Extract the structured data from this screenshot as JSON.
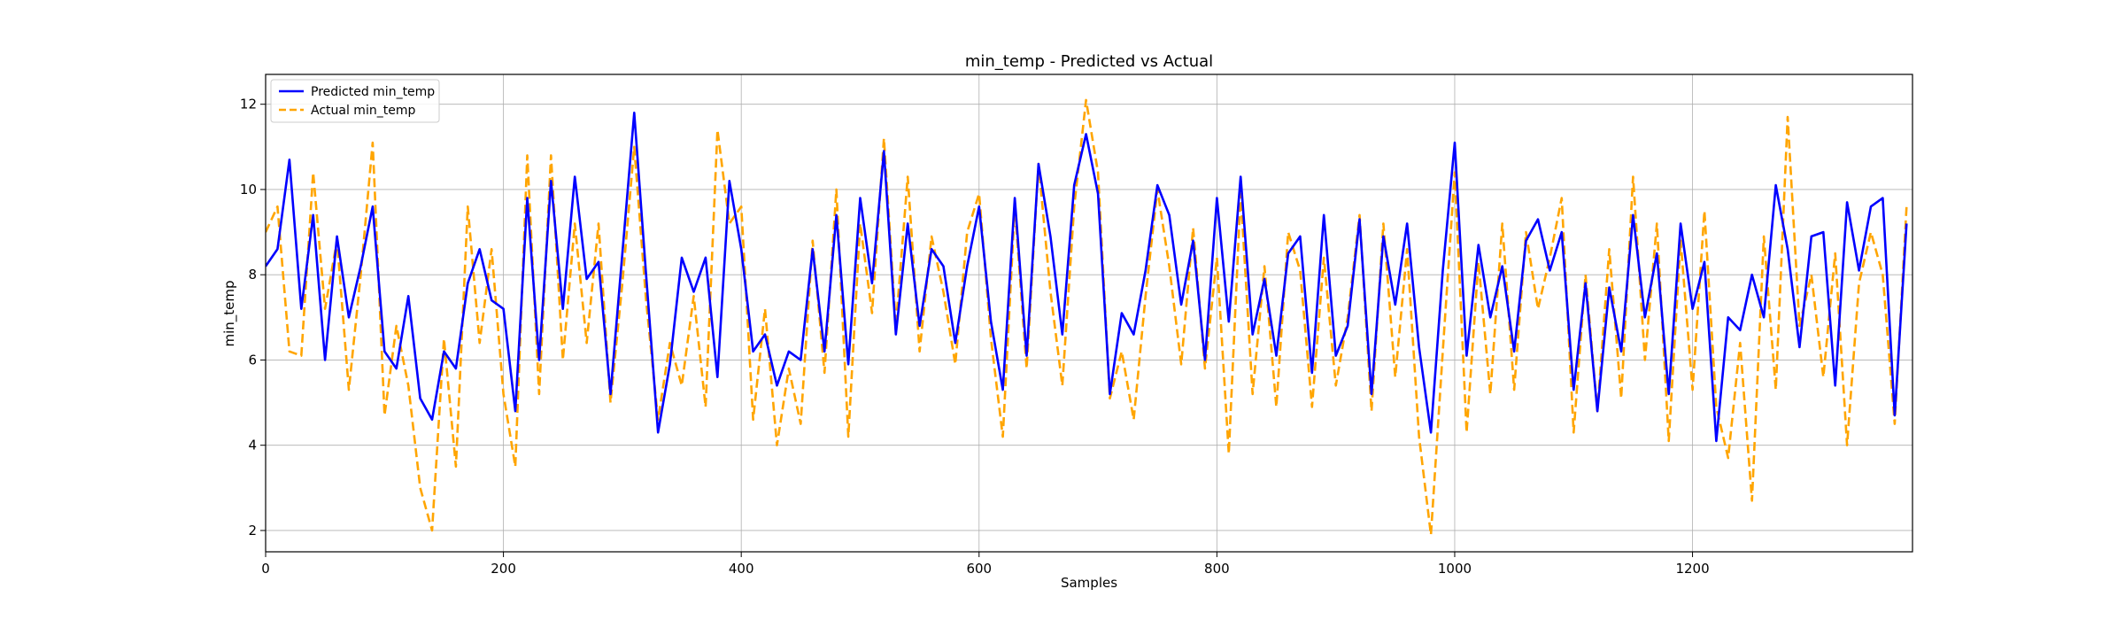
{
  "chart_data": {
    "type": "line",
    "title": "min_temp - Predicted vs Actual",
    "xlabel": "Samples",
    "ylabel": "min_temp",
    "xlim": [
      0,
      1385
    ],
    "ylim": [
      1.5,
      12.7
    ],
    "xticks": [
      0,
      200,
      400,
      600,
      800,
      1000,
      1200
    ],
    "yticks": [
      2,
      4,
      6,
      8,
      10,
      12
    ],
    "grid": true,
    "legend_position": "top-left",
    "series": [
      {
        "name": "Predicted min_temp",
        "color": "#0000ff",
        "style": "solid",
        "x": [
          0,
          10,
          20,
          30,
          40,
          50,
          60,
          70,
          80,
          90,
          100,
          110,
          120,
          130,
          140,
          150,
          160,
          170,
          180,
          190,
          200,
          210,
          220,
          230,
          240,
          250,
          260,
          270,
          280,
          290,
          300,
          310,
          320,
          330,
          340,
          350,
          360,
          370,
          380,
          390,
          400,
          410,
          420,
          430,
          440,
          450,
          460,
          470,
          480,
          490,
          500,
          510,
          520,
          530,
          540,
          550,
          560,
          570,
          580,
          590,
          600,
          610,
          620,
          630,
          640,
          650,
          660,
          670,
          680,
          690,
          700,
          710,
          720,
          730,
          740,
          750,
          760,
          770,
          780,
          790,
          800,
          810,
          820,
          830,
          840,
          850,
          860,
          870,
          880,
          890,
          900,
          910,
          920,
          930,
          940,
          950,
          960,
          970,
          980,
          990,
          1000,
          1010,
          1020,
          1030,
          1040,
          1050,
          1060,
          1070,
          1080,
          1090,
          1100,
          1110,
          1120,
          1130,
          1140,
          1150,
          1160,
          1170,
          1180,
          1190,
          1200,
          1210,
          1220,
          1230,
          1240,
          1250,
          1260,
          1270,
          1280,
          1290,
          1300,
          1310,
          1320,
          1330,
          1340,
          1350,
          1360,
          1370,
          1380
        ],
        "y": [
          8.2,
          8.6,
          10.7,
          7.2,
          9.4,
          6.0,
          8.9,
          7.0,
          8.2,
          9.6,
          6.2,
          5.8,
          7.5,
          5.1,
          4.6,
          6.2,
          5.8,
          7.8,
          8.6,
          7.4,
          7.2,
          4.8,
          9.8,
          6.0,
          10.2,
          7.2,
          10.3,
          7.9,
          8.3,
          5.2,
          8.5,
          11.8,
          8.0,
          4.3,
          5.9,
          8.4,
          7.6,
          8.4,
          5.6,
          10.2,
          8.6,
          6.2,
          6.6,
          5.4,
          6.2,
          6.0,
          8.6,
          6.2,
          9.4,
          5.9,
          9.8,
          7.8,
          10.9,
          6.6,
          9.2,
          6.8,
          8.6,
          8.2,
          6.4,
          8.2,
          9.6,
          6.9,
          5.3,
          9.8,
          6.1,
          10.6,
          8.9,
          6.6,
          10.1,
          11.3,
          9.9,
          5.2,
          7.1,
          6.6,
          8.1,
          10.1,
          9.4,
          7.3,
          8.8,
          6.0,
          9.8,
          6.9,
          10.3,
          6.6,
          7.9,
          6.1,
          8.5,
          8.9,
          5.7,
          9.4,
          6.1,
          6.8,
          9.3,
          5.2,
          8.9,
          7.3,
          9.2,
          6.3,
          4.3,
          8.1,
          11.1,
          6.1,
          8.7,
          7.0,
          8.2,
          6.2,
          8.8,
          9.3,
          8.1,
          9.0,
          5.3,
          7.8,
          4.8,
          7.7,
          6.2,
          9.4,
          7.0,
          8.5,
          5.2,
          9.2,
          7.2,
          8.3,
          4.1,
          7.0,
          6.7,
          8.0,
          7.0,
          10.1,
          8.6,
          6.3,
          8.9,
          9.0,
          5.4,
          9.7,
          8.1,
          9.6,
          9.8,
          4.7,
          9.2
        ]
      },
      {
        "name": "Actual min_temp",
        "color": "#ffa500",
        "style": "dashed",
        "x": [
          0,
          10,
          20,
          30,
          40,
          50,
          60,
          70,
          80,
          90,
          100,
          110,
          120,
          130,
          140,
          150,
          160,
          170,
          180,
          190,
          200,
          210,
          220,
          230,
          240,
          250,
          260,
          270,
          280,
          290,
          300,
          310,
          320,
          330,
          340,
          350,
          360,
          370,
          380,
          390,
          400,
          410,
          420,
          430,
          440,
          450,
          460,
          470,
          480,
          490,
          500,
          510,
          520,
          530,
          540,
          550,
          560,
          570,
          580,
          590,
          600,
          610,
          620,
          630,
          640,
          650,
          660,
          670,
          680,
          690,
          700,
          710,
          720,
          730,
          740,
          750,
          760,
          770,
          780,
          790,
          800,
          810,
          820,
          830,
          840,
          850,
          860,
          870,
          880,
          890,
          900,
          910,
          920,
          930,
          940,
          950,
          960,
          970,
          980,
          990,
          1000,
          1010,
          1020,
          1030,
          1040,
          1050,
          1060,
          1070,
          1080,
          1090,
          1100,
          1110,
          1120,
          1130,
          1140,
          1150,
          1160,
          1170,
          1180,
          1190,
          1200,
          1210,
          1220,
          1230,
          1240,
          1250,
          1260,
          1270,
          1280,
          1290,
          1300,
          1310,
          1320,
          1330,
          1340,
          1350,
          1360,
          1370,
          1380
        ],
        "y": [
          9.0,
          9.6,
          6.2,
          6.1,
          10.4,
          7.2,
          8.8,
          5.3,
          8.0,
          11.1,
          4.7,
          6.8,
          5.4,
          3.0,
          2.0,
          6.5,
          3.5,
          9.6,
          6.4,
          8.6,
          5.2,
          3.5,
          10.8,
          5.2,
          10.8,
          6.0,
          9.2,
          6.4,
          9.2,
          5.0,
          7.8,
          11.0,
          7.4,
          4.6,
          6.4,
          5.4,
          7.5,
          4.9,
          11.4,
          9.2,
          9.6,
          4.6,
          7.2,
          4.0,
          5.8,
          4.5,
          8.8,
          5.7,
          10.0,
          4.2,
          9.2,
          7.1,
          11.2,
          6.8,
          10.3,
          6.2,
          8.9,
          7.6,
          5.9,
          9.0,
          9.9,
          6.5,
          4.2,
          9.6,
          5.8,
          10.6,
          7.6,
          5.4,
          9.6,
          12.1,
          10.4,
          5.1,
          6.2,
          4.6,
          7.5,
          10.0,
          8.2,
          5.9,
          9.1,
          5.8,
          8.4,
          3.8,
          9.9,
          5.2,
          8.2,
          4.9,
          9.0,
          8.1,
          4.9,
          8.4,
          5.4,
          7.0,
          9.4,
          4.8,
          9.2,
          5.6,
          8.6,
          4.2,
          1.9,
          6.2,
          10.4,
          4.3,
          8.3,
          5.2,
          9.2,
          5.3,
          9.0,
          7.2,
          8.4,
          9.8,
          4.3,
          8.0,
          4.8,
          8.6,
          5.1,
          10.3,
          6.0,
          9.2,
          4.1,
          8.8,
          5.3,
          9.5,
          4.9,
          3.7,
          6.4,
          2.7,
          8.9,
          5.3,
          11.7,
          6.8,
          8.0,
          5.6,
          8.5,
          4.0,
          7.8,
          9.0,
          8.0,
          4.5,
          9.6
        ]
      }
    ]
  }
}
